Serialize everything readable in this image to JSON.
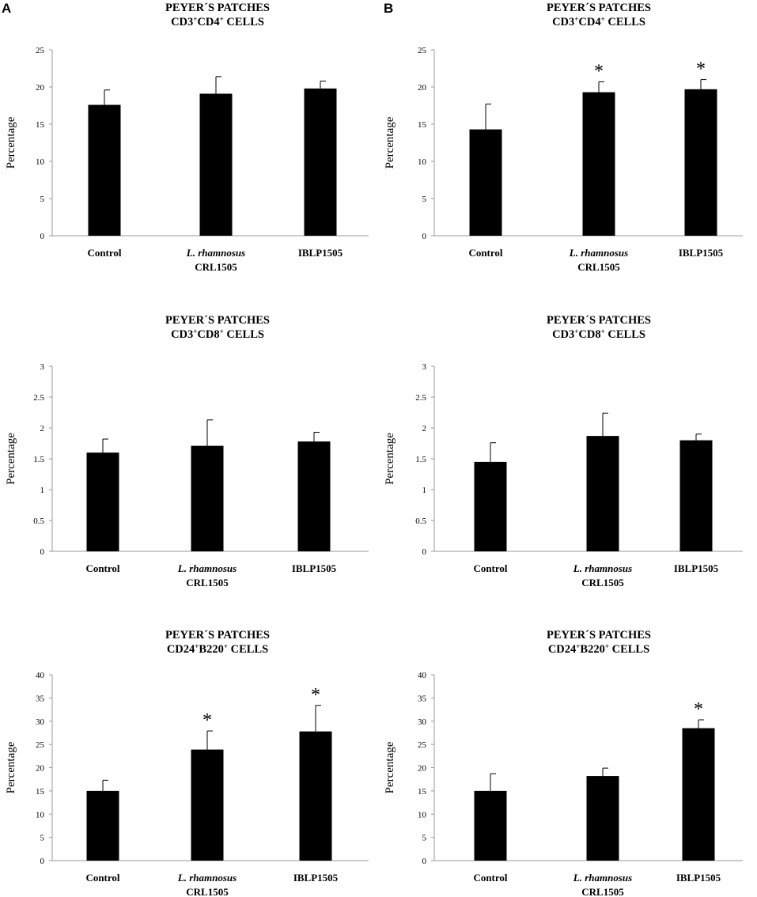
{
  "figure": {
    "panel_letters": [
      "A",
      "B"
    ],
    "colors": {
      "bar": "#000000",
      "axis": "#999999",
      "background": "#ffffff"
    }
  },
  "chart_data": [
    {
      "type": "bar",
      "panel": "A",
      "title_line1": "PEYER´S PATCHES",
      "title_line2": {
        "parts": [
          "CD3",
          "+",
          "CD4",
          "+",
          " CELLS"
        ]
      },
      "ylabel": "Percentage",
      "categories": [
        {
          "line1": "Control",
          "line2": "",
          "italic_line1": false
        },
        {
          "line1": "L. rhamnosus",
          "line2": "CRL1505",
          "italic_line1": true
        },
        {
          "line1": "IBLP1505",
          "line2": "",
          "italic_line1": false
        }
      ],
      "values": [
        17.6,
        19.1,
        19.8
      ],
      "errors": [
        2.0,
        2.3,
        1.0
      ],
      "significant": [
        "",
        "",
        ""
      ],
      "ylim": [
        0,
        25
      ],
      "yticks": [
        "0",
        "5",
        "10",
        "15",
        "20",
        "25"
      ]
    },
    {
      "type": "bar",
      "panel": "B",
      "title_line1": "PEYER´S PATCHES",
      "title_line2": {
        "parts": [
          "CD3",
          "+",
          "CD4",
          "+",
          " CELLS"
        ]
      },
      "ylabel": "Percentage",
      "categories": [
        {
          "line1": "Control",
          "line2": "",
          "italic_line1": false
        },
        {
          "line1": "L. rhamnosus",
          "line2": "CRL1505",
          "italic_line1": true
        },
        {
          "line1": "IBLP1505",
          "line2": "",
          "italic_line1": false
        }
      ],
      "values": [
        14.3,
        19.3,
        19.7
      ],
      "errors": [
        3.4,
        1.4,
        1.3
      ],
      "significant": [
        "",
        "*",
        "*"
      ],
      "ylim": [
        0,
        25
      ],
      "yticks": [
        "0",
        "5",
        "10",
        "15",
        "20",
        "25"
      ]
    },
    {
      "type": "bar",
      "panel": "A",
      "title_line1": "PEYER´S PATCHES",
      "title_line2": {
        "parts": [
          "CD3",
          "+",
          "CD8",
          "+",
          " CELLS"
        ]
      },
      "ylabel": "Percentage",
      "categories": [
        {
          "line1": "Control",
          "line2": "",
          "italic_line1": false
        },
        {
          "line1": "L. rhamnosus",
          "line2": "CRL1505",
          "italic_line1": true
        },
        {
          "line1": "IBLP1505",
          "line2": "",
          "italic_line1": false
        }
      ],
      "values": [
        1.6,
        1.71,
        1.78
      ],
      "errors": [
        0.22,
        0.42,
        0.15
      ],
      "significant": [
        "",
        "",
        ""
      ],
      "ylim": [
        0,
        3
      ],
      "yticks": [
        "0",
        "0.5",
        "1",
        "1.5",
        "2",
        "2.5",
        "3"
      ]
    },
    {
      "type": "bar",
      "panel": "B",
      "title_line1": "PEYER´S PATCHES",
      "title_line2": {
        "parts": [
          "CD3",
          "+",
          "CD8",
          "+",
          " CELLS"
        ]
      },
      "ylabel": "Percentage",
      "categories": [
        {
          "line1": "Control",
          "line2": "",
          "italic_line1": false
        },
        {
          "line1": "L. rhamnosus",
          "line2": "CRL1505",
          "italic_line1": true
        },
        {
          "line1": "IBLP1505",
          "line2": "",
          "italic_line1": false
        }
      ],
      "values": [
        1.45,
        1.87,
        1.8
      ],
      "errors": [
        0.31,
        0.37,
        0.1
      ],
      "significant": [
        "",
        "",
        ""
      ],
      "ylim": [
        0,
        3
      ],
      "yticks": [
        "0",
        "0.5",
        "1",
        "1.5",
        "2",
        "2.5",
        "3"
      ]
    },
    {
      "type": "bar",
      "panel": "A",
      "title_line1": "PEYER´S PATCHES",
      "title_line2": {
        "parts": [
          "CD24",
          "+",
          "B220",
          "+",
          " CELLS"
        ]
      },
      "ylabel": "Percentage",
      "categories": [
        {
          "line1": "Control",
          "line2": "",
          "italic_line1": false
        },
        {
          "line1": "L. rhamnosus",
          "line2": "CRL1505",
          "italic_line1": true
        },
        {
          "line1": "IBLP1505",
          "line2": "",
          "italic_line1": false
        }
      ],
      "values": [
        15.0,
        23.9,
        27.8
      ],
      "errors": [
        2.3,
        4.0,
        5.6
      ],
      "significant": [
        "",
        "*",
        "*"
      ],
      "ylim": [
        0,
        40
      ],
      "yticks": [
        "0",
        "5",
        "10",
        "15",
        "20",
        "25",
        "30",
        "35",
        "40"
      ]
    },
    {
      "type": "bar",
      "panel": "B",
      "title_line1": "PEYER´S PATCHES",
      "title_line2": {
        "parts": [
          "CD24",
          "+",
          "B220",
          "+",
          " CELLS"
        ]
      },
      "ylabel": "Percentage",
      "categories": [
        {
          "line1": "Control",
          "line2": "",
          "italic_line1": false
        },
        {
          "line1": "L. rhamnosus",
          "line2": "CRL1505",
          "italic_line1": true
        },
        {
          "line1": "IBLP1505",
          "line2": "",
          "italic_line1": false
        }
      ],
      "values": [
        15.0,
        18.2,
        28.5
      ],
      "errors": [
        3.7,
        1.7,
        1.8
      ],
      "significant": [
        "",
        "",
        "*"
      ],
      "ylim": [
        0,
        40
      ],
      "yticks": [
        "0",
        "5",
        "10",
        "15",
        "20",
        "25",
        "30",
        "35",
        "40"
      ]
    }
  ]
}
